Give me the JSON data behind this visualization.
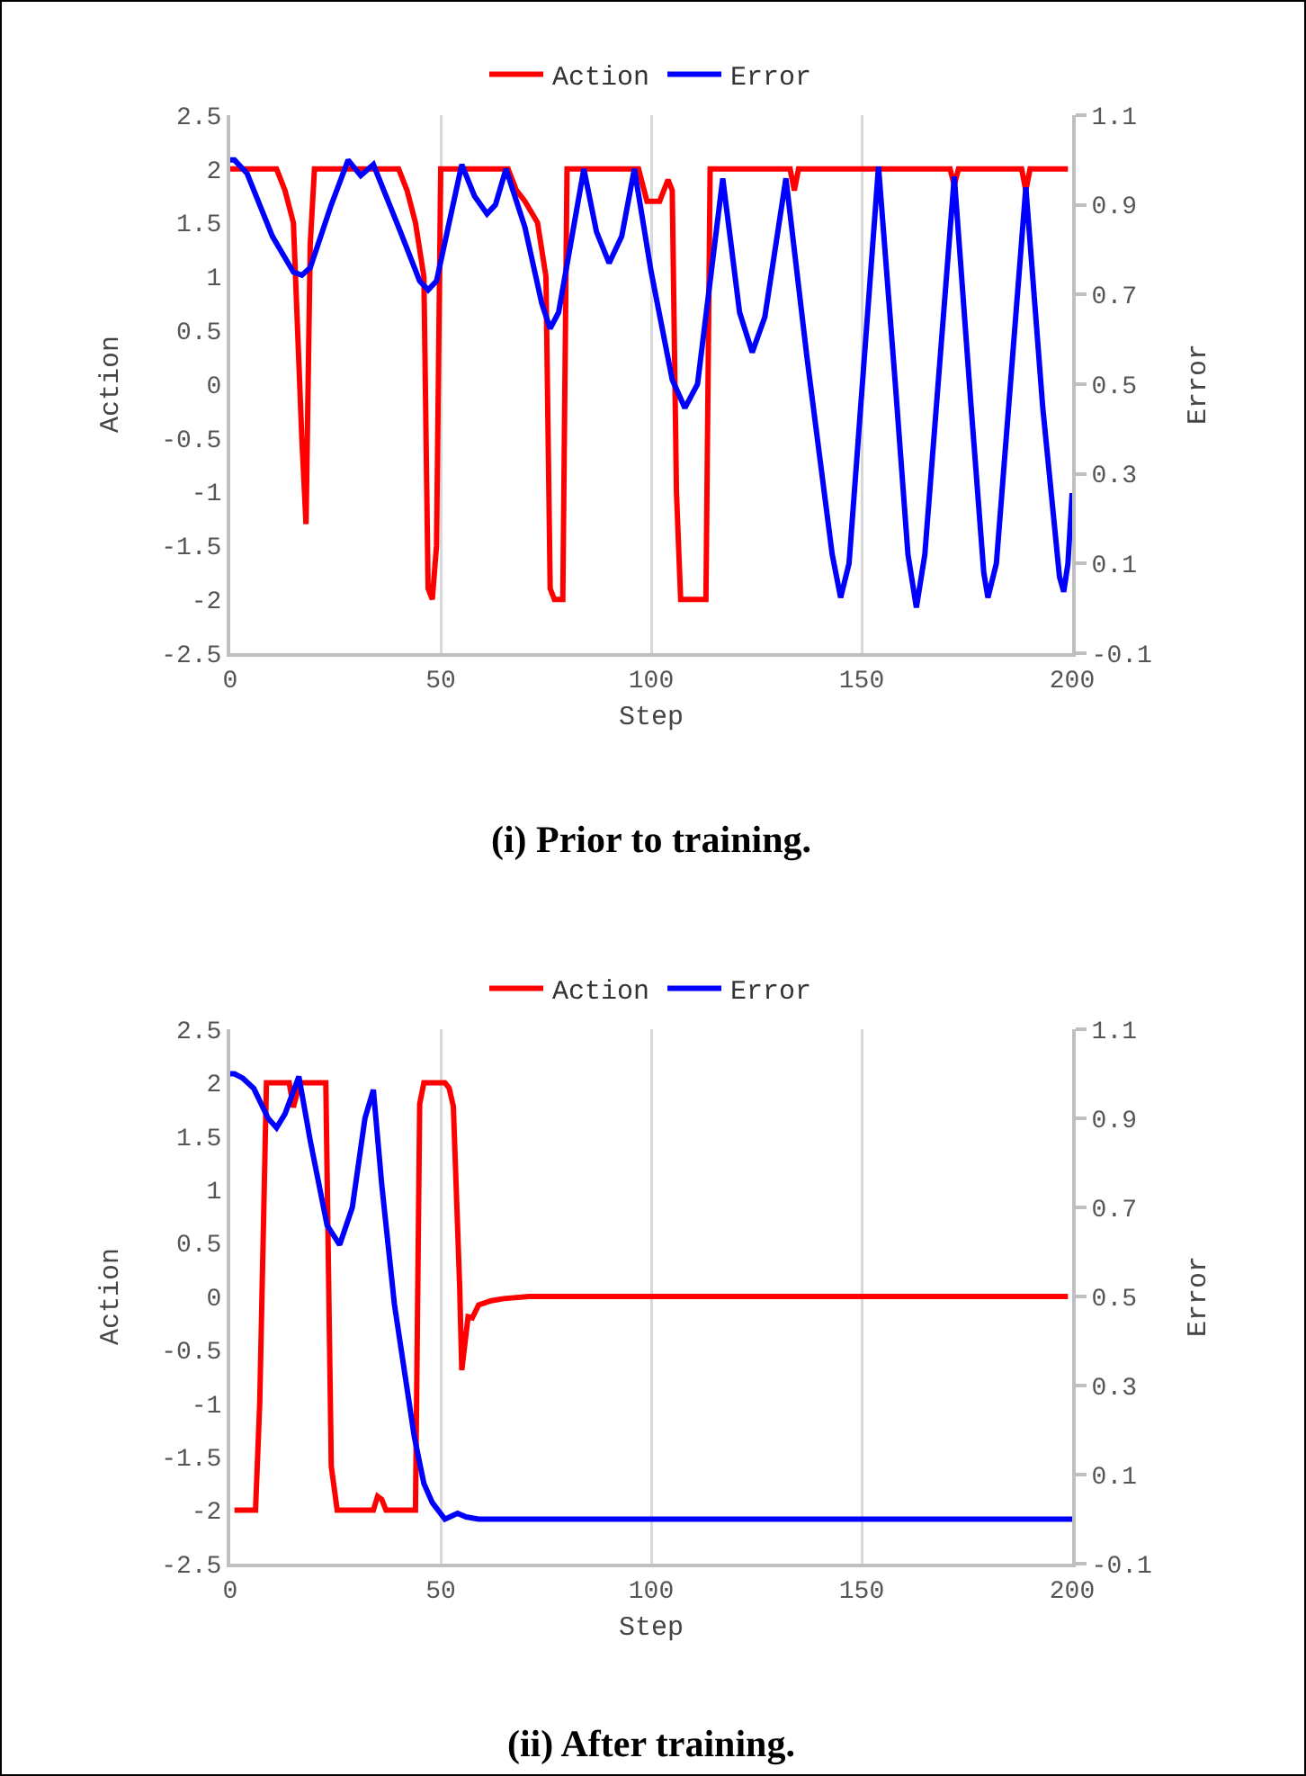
{
  "chart_data": [
    {
      "type": "line",
      "title": "(i) Prior to training.",
      "xlabel": "Step",
      "ylabel": "Action",
      "y2label": "Error",
      "legend": "top",
      "grid": "x",
      "line_style": "solid",
      "marker": "none",
      "xlim": [
        0,
        200
      ],
      "xticks": [
        0,
        50,
        100,
        150,
        200
      ],
      "ylim": [
        -2.5,
        2.5
      ],
      "yticks": [
        -2.5,
        -2,
        -1.5,
        -1,
        -0.5,
        0,
        0.5,
        1,
        1.5,
        2,
        2.5
      ],
      "y2lim": [
        -0.1,
        1.1
      ],
      "y2ticks": [
        -0.1,
        0.1,
        0.3,
        0.5,
        0.7,
        0.9,
        1.1
      ],
      "series": [
        {
          "name": "Action",
          "color": "#ff0000",
          "x": [
            0,
            11,
            13,
            15,
            16,
            17,
            18,
            19,
            20,
            40,
            42,
            44,
            46,
            47,
            48,
            49,
            50,
            66,
            68,
            70,
            73,
            75,
            76,
            77,
            79,
            80,
            97,
            99,
            102,
            104,
            105,
            106,
            107,
            113,
            114,
            133,
            134,
            135,
            171,
            172,
            173,
            188,
            189,
            190,
            199
          ],
          "values": [
            2,
            2,
            1.8,
            1.5,
            0.5,
            -0.5,
            -1.3,
            1.3,
            2,
            2,
            1.8,
            1.5,
            1,
            -1.9,
            -2,
            -1.5,
            2,
            2,
            1.8,
            1.7,
            1.5,
            1,
            -1.9,
            -2,
            -2,
            2,
            2,
            1.7,
            1.7,
            1.9,
            1.8,
            -1,
            -2,
            -2,
            2,
            2,
            1.8,
            2,
            2,
            1.85,
            2,
            2,
            1.8,
            2,
            2
          ]
        },
        {
          "name": "Error",
          "color": "#0000ff",
          "axis": "y2",
          "x": [
            0,
            1,
            4,
            10,
            15,
            17,
            19,
            24,
            28,
            31,
            34,
            40,
            45,
            47,
            49,
            55,
            58,
            61,
            63,
            65.5,
            70,
            74,
            76,
            78,
            84,
            87,
            90,
            93,
            96,
            100,
            105,
            108,
            111,
            117,
            121,
            124,
            127,
            132,
            137,
            143,
            145,
            147,
            154,
            158,
            161,
            163,
            165,
            172,
            176,
            179,
            180,
            182,
            189,
            193,
            197,
            198,
            199,
            200
          ],
          "values": [
            1,
            1,
            0.97,
            0.83,
            0.75,
            0.743,
            0.76,
            0.9,
            1,
            0.965,
            0.99,
            0.85,
            0.73,
            0.71,
            0.73,
            0.99,
            0.92,
            0.88,
            0.9,
            0.98,
            0.85,
            0.68,
            0.624,
            0.66,
            0.98,
            0.84,
            0.77,
            0.83,
            0.98,
            0.75,
            0.51,
            0.447,
            0.5,
            0.959,
            0.66,
            0.571,
            0.65,
            0.959,
            0.56,
            0.12,
            0.024,
            0.1,
            0.985,
            0.5,
            0.12,
            0.002,
            0.12,
            0.963,
            0.45,
            0.08,
            0.024,
            0.1,
            0.939,
            0.45,
            0.07,
            0.037,
            0.1,
            0.257
          ]
        }
      ]
    },
    {
      "type": "line",
      "title": "(ii) After training.",
      "xlabel": "Step",
      "ylabel": "Action",
      "y2label": "Error",
      "legend": "top",
      "grid": "x",
      "line_style": "solid",
      "marker": "none",
      "xlim": [
        0,
        200
      ],
      "xticks": [
        0,
        50,
        100,
        150,
        200
      ],
      "ylim": [
        -2.5,
        2.5
      ],
      "yticks": [
        -2.5,
        -2,
        -1.5,
        -1,
        -0.5,
        0,
        0.5,
        1,
        1.5,
        2,
        2.5
      ],
      "y2lim": [
        -0.1,
        1.1
      ],
      "y2ticks": [
        -0.1,
        0.1,
        0.3,
        0.5,
        0.7,
        0.9,
        1.1
      ],
      "series": [
        {
          "name": "Action",
          "color": "#ff0000",
          "x": [
            1,
            6,
            7,
            8.6,
            14,
            15,
            16.5,
            22.7,
            24,
            25.4,
            34,
            35,
            36,
            37,
            44,
            45,
            46,
            51,
            52,
            53,
            54.5,
            55,
            56.5,
            57.5,
            59,
            62,
            65,
            71,
            199
          ],
          "values": [
            -2,
            -2,
            -1,
            2,
            2,
            1.77,
            2,
            2,
            -1.59,
            -2,
            -2,
            -1.87,
            -1.9,
            -2,
            -2,
            1.8,
            2,
            2,
            1.95,
            1.78,
            0.09,
            -0.69,
            -0.19,
            -0.2,
            -0.08,
            -0.04,
            -0.02,
            0,
            0
          ]
        },
        {
          "name": "Error",
          "color": "#0000ff",
          "axis": "y2",
          "x": [
            0,
            1,
            3,
            5.6,
            9,
            11,
            13,
            16.3,
            19,
            23,
            26,
            29,
            32,
            34,
            36,
            39,
            43.7,
            46,
            48,
            51,
            54,
            56,
            59,
            70,
            200
          ],
          "values": [
            1,
            1,
            0.99,
            0.967,
            0.9,
            0.879,
            0.91,
            0.994,
            0.85,
            0.66,
            0.616,
            0.7,
            0.9,
            0.964,
            0.75,
            0.482,
            0.186,
            0.08,
            0.037,
            0,
            0.013,
            0.005,
            0,
            0,
            0
          ]
        }
      ]
    }
  ]
}
